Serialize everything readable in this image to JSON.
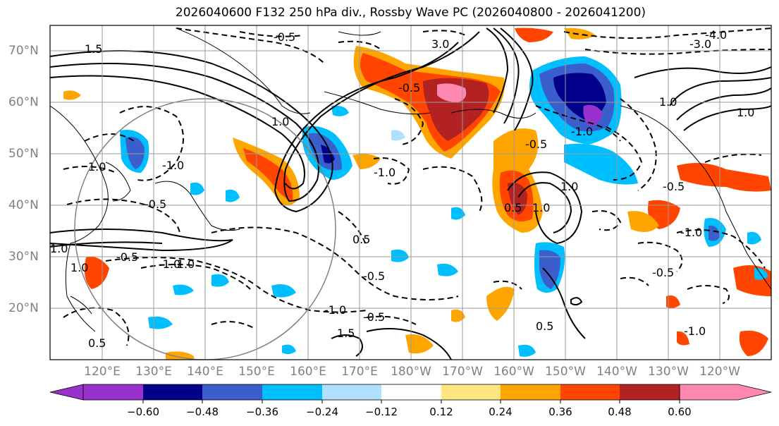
{
  "title": "2026040600 F132 250 hPa div., Rossby Wave PC (2026040800 - 2026041200)",
  "map": {
    "lat_labels": [
      "70°N",
      "60°N",
      "50°N",
      "40°N",
      "30°N",
      "20°N"
    ],
    "lon_labels": [
      "120°E",
      "130°E",
      "140°E",
      "150°E",
      "160°E",
      "170°E",
      "180°W",
      "170°W",
      "160°W",
      "150°W",
      "140°W",
      "130°W",
      "120°W"
    ],
    "contour_labels": [
      "-0.5",
      "1.5",
      "3.0",
      "-4.0",
      "-3.0",
      "1.0",
      "-0.5",
      "1.0",
      "-1.0",
      "1.0",
      "-0.5",
      "-1.0",
      "1.0",
      "-1.0",
      "0.5",
      "1.0",
      "-0.5",
      "-1.0",
      "0.5",
      "1.0",
      "-1.0",
      "-0.5",
      "0.5",
      "-0.5",
      "1.0",
      "-1.0",
      "1.5",
      "-0.5",
      "0.5",
      "1.0",
      "-1.0",
      "-0.5",
      "-1.0",
      "-0.5"
    ]
  },
  "colorbar": {
    "colors": [
      "#9932cc",
      "#00008b",
      "#3a5fcd",
      "#00bfff",
      "#b0e0ff",
      "#ffffff",
      "#ffe680",
      "#ffa500",
      "#ff4500",
      "#b22222",
      "#ff88b0"
    ],
    "labels": [
      "−0.60",
      "−0.48",
      "−0.36",
      "−0.24",
      "−0.12",
      "0.12",
      "0.24",
      "0.36",
      "0.48",
      "0.60"
    ]
  }
}
